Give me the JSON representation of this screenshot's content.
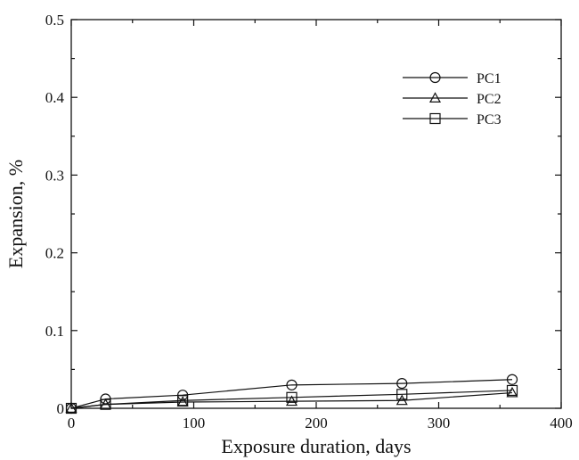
{
  "chart_data": {
    "type": "line",
    "xlabel": "Exposure duration, days",
    "ylabel": "Expansion, %",
    "xlim": [
      0,
      400
    ],
    "ylim": [
      0,
      0.5
    ],
    "xticks": [
      0,
      100,
      200,
      300,
      400
    ],
    "yticks": [
      0,
      0.1,
      0.2,
      0.3,
      0.4,
      0.5
    ],
    "xtick_labels": [
      "0",
      "100",
      "200",
      "300",
      "400"
    ],
    "ytick_labels": [
      "0",
      "0.1",
      "0.2",
      "0.3",
      "0.4",
      "0.5"
    ],
    "grid": false,
    "legend_position": "top-right",
    "series": [
      {
        "name": "PC1",
        "marker": "circle",
        "x": [
          0,
          28,
          91,
          180,
          270,
          360
        ],
        "y": [
          0,
          0.012,
          0.017,
          0.03,
          0.032,
          0.037
        ]
      },
      {
        "name": "PC2",
        "marker": "triangle",
        "x": [
          0,
          28,
          91,
          180,
          270,
          360
        ],
        "y": [
          0,
          0.005,
          0.008,
          0.009,
          0.01,
          0.02
        ]
      },
      {
        "name": "PC3",
        "marker": "square",
        "x": [
          0,
          28,
          91,
          180,
          270,
          360
        ],
        "y": [
          0,
          0.005,
          0.01,
          0.014,
          0.018,
          0.023
        ]
      }
    ]
  }
}
